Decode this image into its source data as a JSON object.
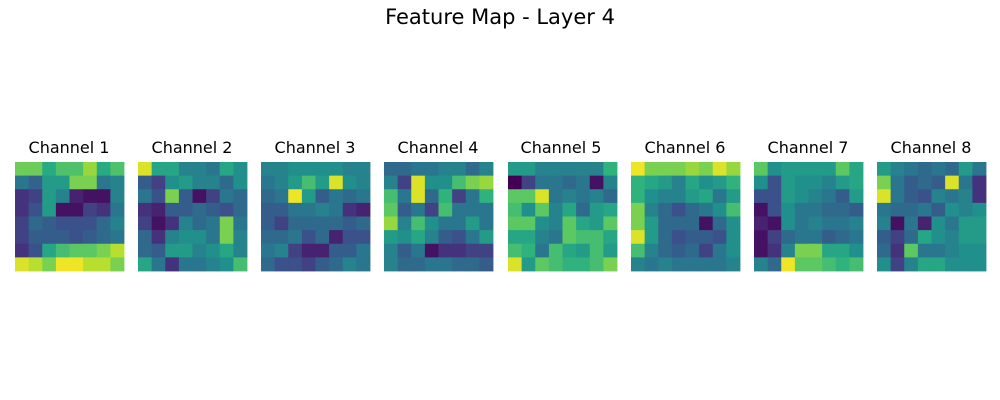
{
  "figure": {
    "title": "Feature Map - Layer 4"
  },
  "chart_data": {
    "type": "heatmap",
    "title": "Feature Map - Layer 4",
    "colormap": "viridis",
    "rows": 8,
    "cols": 8,
    "channels": [
      {
        "label": "Channel 1",
        "values": [
          [
            0.78,
            0.78,
            0.62,
            0.72,
            0.72,
            0.85,
            0.62,
            0.72
          ],
          [
            0.4,
            0.32,
            0.55,
            0.55,
            0.8,
            0.8,
            0.4,
            0.45
          ],
          [
            0.15,
            0.2,
            0.55,
            0.45,
            0.1,
            0.05,
            0.05,
            0.45
          ],
          [
            0.15,
            0.25,
            0.55,
            0.05,
            0.05,
            0.2,
            0.15,
            0.4
          ],
          [
            0.2,
            0.35,
            0.3,
            0.25,
            0.25,
            0.25,
            0.35,
            0.45
          ],
          [
            0.2,
            0.3,
            0.3,
            0.3,
            0.25,
            0.3,
            0.35,
            0.4
          ],
          [
            0.15,
            0.25,
            0.6,
            0.7,
            0.75,
            0.75,
            0.8,
            0.9
          ],
          [
            0.95,
            0.9,
            0.8,
            0.98,
            0.98,
            0.9,
            0.9,
            0.8
          ]
        ]
      },
      {
        "label": "Channel 2",
        "values": [
          [
            0.95,
            0.6,
            0.6,
            0.45,
            0.45,
            0.4,
            0.6,
            0.5
          ],
          [
            0.3,
            0.2,
            0.5,
            0.55,
            0.45,
            0.45,
            0.35,
            0.5
          ],
          [
            0.4,
            0.25,
            0.8,
            0.3,
            0.05,
            0.2,
            0.4,
            0.35
          ],
          [
            0.15,
            0.1,
            0.3,
            0.3,
            0.35,
            0.3,
            0.25,
            0.35
          ],
          [
            0.2,
            0.05,
            0.15,
            0.45,
            0.35,
            0.4,
            0.8,
            0.4
          ],
          [
            0.35,
            0.15,
            0.45,
            0.5,
            0.5,
            0.4,
            0.8,
            0.45
          ],
          [
            0.35,
            0.3,
            0.55,
            0.55,
            0.45,
            0.5,
            0.6,
            0.45
          ],
          [
            0.6,
            0.4,
            0.15,
            0.4,
            0.4,
            0.45,
            0.5,
            0.7
          ]
        ]
      },
      {
        "label": "Channel 3",
        "values": [
          [
            0.45,
            0.45,
            0.5,
            0.5,
            0.5,
            0.5,
            0.45,
            0.45
          ],
          [
            0.4,
            0.45,
            0.55,
            0.7,
            0.55,
            0.95,
            0.5,
            0.45
          ],
          [
            0.35,
            0.4,
            0.98,
            0.55,
            0.3,
            0.4,
            0.35,
            0.4
          ],
          [
            0.3,
            0.3,
            0.4,
            0.4,
            0.45,
            0.4,
            0.15,
            0.1
          ],
          [
            0.3,
            0.2,
            0.35,
            0.35,
            0.35,
            0.35,
            0.3,
            0.35
          ],
          [
            0.35,
            0.35,
            0.4,
            0.25,
            0.35,
            0.1,
            0.25,
            0.25
          ],
          [
            0.4,
            0.45,
            0.2,
            0.1,
            0.1,
            0.3,
            0.3,
            0.4
          ],
          [
            0.35,
            0.25,
            0.25,
            0.2,
            0.3,
            0.35,
            0.45,
            0.4
          ]
        ]
      },
      {
        "label": "Channel 4",
        "values": [
          [
            0.35,
            0.35,
            0.4,
            0.4,
            0.45,
            0.45,
            0.35,
            0.45
          ],
          [
            0.45,
            0.2,
            0.95,
            0.5,
            0.5,
            0.7,
            0.8,
            0.85
          ],
          [
            0.7,
            0.4,
            0.95,
            0.35,
            0.65,
            0.2,
            0.4,
            0.65
          ],
          [
            0.75,
            0.3,
            0.4,
            0.2,
            0.7,
            0.4,
            0.4,
            0.4
          ],
          [
            0.85,
            0.45,
            0.7,
            0.5,
            0.4,
            0.4,
            0.55,
            0.4
          ],
          [
            0.55,
            0.5,
            0.6,
            0.45,
            0.3,
            0.25,
            0.4,
            0.55
          ],
          [
            0.45,
            0.3,
            0.4,
            0.05,
            0.15,
            0.15,
            0.2,
            0.2
          ],
          [
            0.45,
            0.35,
            0.35,
            0.4,
            0.4,
            0.35,
            0.35,
            0.3
          ]
        ]
      },
      {
        "label": "Channel 5",
        "values": [
          [
            0.55,
            0.55,
            0.45,
            0.45,
            0.45,
            0.45,
            0.45,
            0.65
          ],
          [
            0.0,
            0.2,
            0.4,
            0.4,
            0.35,
            0.4,
            0.05,
            0.45
          ],
          [
            0.75,
            0.75,
            0.95,
            0.4,
            0.45,
            0.4,
            0.45,
            0.35
          ],
          [
            0.7,
            0.5,
            0.75,
            0.45,
            0.6,
            0.35,
            0.55,
            0.6
          ],
          [
            0.75,
            0.75,
            0.5,
            0.45,
            0.75,
            0.6,
            0.55,
            0.75
          ],
          [
            0.6,
            0.6,
            0.45,
            0.4,
            0.75,
            0.7,
            0.7,
            0.6
          ],
          [
            0.7,
            0.65,
            0.4,
            0.7,
            0.6,
            0.55,
            0.7,
            0.55
          ],
          [
            0.95,
            0.55,
            0.75,
            0.7,
            0.65,
            0.65,
            0.7,
            0.8
          ]
        ]
      },
      {
        "label": "Channel 6",
        "values": [
          [
            0.98,
            0.8,
            0.8,
            0.8,
            0.85,
            0.8,
            0.95,
            0.85
          ],
          [
            0.65,
            0.6,
            0.55,
            0.45,
            0.6,
            0.5,
            0.55,
            0.65
          ],
          [
            0.65,
            0.5,
            0.45,
            0.45,
            0.55,
            0.6,
            0.4,
            0.55
          ],
          [
            0.8,
            0.45,
            0.35,
            0.25,
            0.35,
            0.4,
            0.5,
            0.7
          ],
          [
            0.8,
            0.55,
            0.35,
            0.35,
            0.35,
            0.05,
            0.35,
            0.5
          ],
          [
            0.95,
            0.55,
            0.35,
            0.25,
            0.3,
            0.3,
            0.25,
            0.5
          ],
          [
            0.7,
            0.45,
            0.35,
            0.3,
            0.35,
            0.2,
            0.4,
            0.5
          ],
          [
            0.45,
            0.4,
            0.45,
            0.4,
            0.4,
            0.4,
            0.4,
            0.45
          ]
        ]
      },
      {
        "label": "Channel 7",
        "values": [
          [
            0.75,
            0.5,
            0.55,
            0.55,
            0.55,
            0.55,
            0.75,
            0.6
          ],
          [
            0.5,
            0.25,
            0.55,
            0.5,
            0.5,
            0.45,
            0.55,
            0.6
          ],
          [
            0.25,
            0.25,
            0.55,
            0.5,
            0.45,
            0.4,
            0.3,
            0.55
          ],
          [
            0.05,
            0.25,
            0.5,
            0.4,
            0.4,
            0.35,
            0.35,
            0.3
          ],
          [
            0.1,
            0.05,
            0.5,
            0.4,
            0.45,
            0.4,
            0.4,
            0.45
          ],
          [
            0.05,
            0.2,
            0.35,
            0.4,
            0.4,
            0.3,
            0.35,
            0.4
          ],
          [
            0.05,
            0.15,
            0.45,
            0.8,
            0.8,
            0.6,
            0.6,
            0.5
          ],
          [
            0.45,
            0.35,
            0.98,
            0.75,
            0.75,
            0.7,
            0.65,
            0.7
          ]
        ]
      },
      {
        "label": "Channel 8",
        "values": [
          [
            0.55,
            0.45,
            0.4,
            0.35,
            0.4,
            0.35,
            0.55,
            0.4
          ],
          [
            0.8,
            0.4,
            0.3,
            0.35,
            0.3,
            0.95,
            0.4,
            0.15
          ],
          [
            0.95,
            0.4,
            0.3,
            0.25,
            0.45,
            0.4,
            0.45,
            0.15
          ],
          [
            0.4,
            0.35,
            0.35,
            0.4,
            0.3,
            0.5,
            0.45,
            0.5
          ],
          [
            0.45,
            0.05,
            0.4,
            0.1,
            0.5,
            0.4,
            0.55,
            0.55
          ],
          [
            0.3,
            0.2,
            0.35,
            0.6,
            0.5,
            0.45,
            0.55,
            0.55
          ],
          [
            0.35,
            0.15,
            0.75,
            0.4,
            0.4,
            0.45,
            0.5,
            0.5
          ],
          [
            0.5,
            0.2,
            0.45,
            0.6,
            0.6,
            0.5,
            0.5,
            0.5
          ]
        ]
      }
    ]
  }
}
